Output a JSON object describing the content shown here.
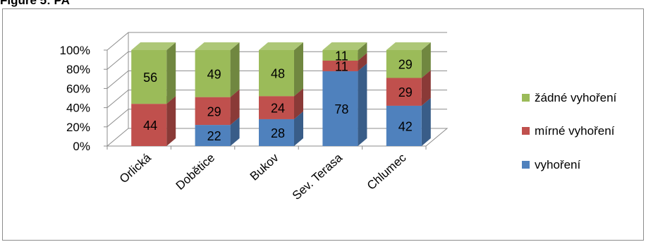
{
  "figure_label": "Figure 5: PA",
  "chart_data": {
    "type": "bar",
    "stacked": true,
    "percent_stacked": true,
    "three_d": true,
    "categories": [
      "Orlická",
      "Dobětice",
      "Bukov",
      "Sev. Terasa",
      "Chlumec"
    ],
    "series": [
      {
        "name": "vyhoření",
        "color": "#4f81bd",
        "values": [
          0,
          22,
          28,
          78,
          42
        ]
      },
      {
        "name": "mírné vyhoření",
        "color": "#c0504d",
        "values": [
          44,
          29,
          24,
          11,
          29
        ]
      },
      {
        "name": "žádné vyhoření",
        "color": "#9bbb59",
        "values": [
          56,
          49,
          48,
          11,
          29
        ]
      }
    ],
    "y_ticks": [
      "0%",
      "20%",
      "40%",
      "60%",
      "80%",
      "100%"
    ],
    "ylim": [
      0,
      100
    ],
    "grid": true,
    "legend_position": "right",
    "title": "",
    "xlabel": "",
    "ylabel": ""
  }
}
